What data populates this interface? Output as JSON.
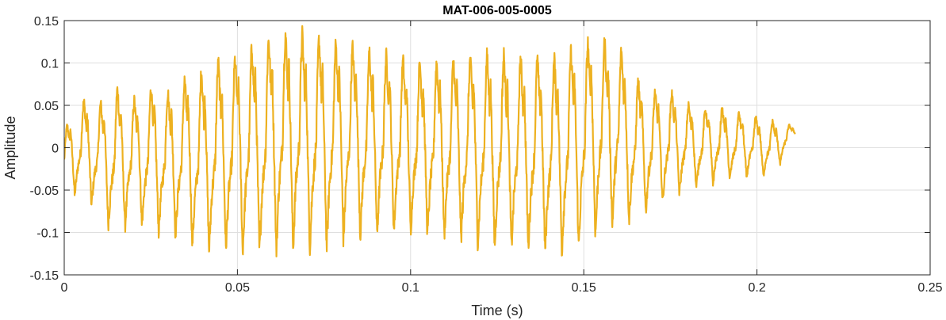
{
  "chart_data": {
    "type": "line",
    "title": "MAT-006-005-0005",
    "xlabel": "Time (s)",
    "ylabel": "Amplitude",
    "xlim": [
      0,
      0.25
    ],
    "ylim": [
      -0.15,
      0.15
    ],
    "x_ticks": [
      0,
      0.05,
      0.1,
      0.15,
      0.2,
      0.25
    ],
    "x_tick_labels": [
      "0",
      "0.05",
      "0.1",
      "0.15",
      "0.2",
      "0.25"
    ],
    "y_ticks": [
      -0.15,
      -0.1,
      -0.05,
      0,
      0.05,
      0.1,
      0.15
    ],
    "y_tick_labels": [
      "-0.15",
      "-0.1",
      "-0.05",
      "0",
      "0.05",
      "0.1",
      "0.15"
    ],
    "grid": true,
    "line_color": "#EDB120",
    "series": [
      {
        "x": [
          0,
          0.005,
          0.01,
          0.015,
          0.02,
          0.025,
          0.03,
          0.035,
          0.04,
          0.045,
          0.05,
          0.055,
          0.06,
          0.065,
          0.07,
          0.075,
          0.08,
          0.085,
          0.09,
          0.095,
          0.1,
          0.105,
          0.11,
          0.115,
          0.12,
          0.125,
          0.13,
          0.135,
          0.14,
          0.145,
          0.15,
          0.155,
          0.16,
          0.165,
          0.17,
          0.175,
          0.18,
          0.185,
          0.19,
          0.195,
          0.2,
          0.205,
          0.211
        ],
        "envelope_max": [
          0.02,
          0.055,
          0.05,
          0.07,
          0.055,
          0.07,
          0.065,
          0.08,
          0.09,
          0.1,
          0.105,
          0.12,
          0.13,
          0.135,
          0.13,
          0.125,
          0.12,
          0.115,
          0.11,
          0.105,
          0.1,
          0.1,
          0.1,
          0.105,
          0.105,
          0.11,
          0.105,
          0.105,
          0.1,
          0.11,
          0.12,
          0.125,
          0.12,
          0.08,
          0.065,
          0.065,
          0.05,
          0.045,
          0.045,
          0.04,
          0.035,
          0.03,
          0.025
        ],
        "envelope_min": [
          -0.05,
          -0.06,
          -0.075,
          -0.105,
          -0.085,
          -0.1,
          -0.1,
          -0.11,
          -0.125,
          -0.12,
          -0.125,
          -0.125,
          -0.125,
          -0.12,
          -0.12,
          -0.12,
          -0.11,
          -0.105,
          -0.105,
          -0.1,
          -0.1,
          -0.105,
          -0.105,
          -0.11,
          -0.115,
          -0.12,
          -0.12,
          -0.12,
          -0.125,
          -0.125,
          -0.115,
          -0.1,
          -0.09,
          -0.085,
          -0.07,
          -0.06,
          -0.05,
          -0.045,
          -0.04,
          -0.035,
          -0.035,
          -0.03,
          0.01
        ],
        "cycle_period_s": 0.00485
      }
    ]
  }
}
